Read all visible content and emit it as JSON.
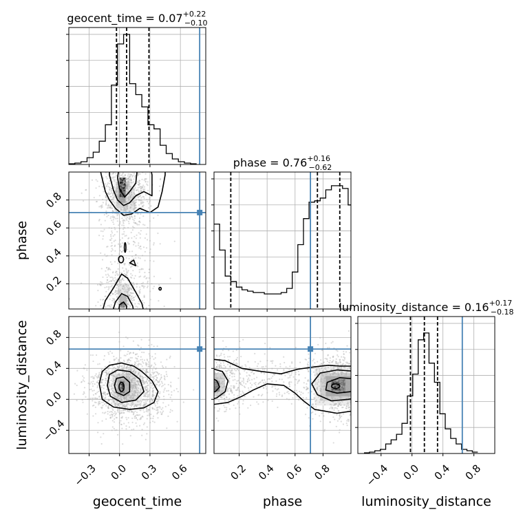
{
  "chart_data": {
    "type": "corner",
    "parameters": [
      "geocent_time",
      "phase",
      "luminosity_distance"
    ],
    "axis_labels": {
      "geocent_time": "geocent_time",
      "phase": "phase",
      "luminosity_distance": "luminosity_distance"
    },
    "titles": [
      {
        "param": "geocent_time",
        "name": "geocent_time",
        "median": "0.07",
        "plus": "+0.22",
        "minus": "−0.10"
      },
      {
        "param": "phase",
        "name": "phase",
        "median": "0.76",
        "plus": "+0.16",
        "minus": "−0.62"
      },
      {
        "param": "luminosity_distance",
        "name": "luminosity_distance",
        "median": "0.16",
        "plus": "+0.17",
        "minus": "−0.18"
      }
    ],
    "ranges": {
      "geocent_time": [
        -0.5,
        0.85
      ],
      "phase": [
        0.02,
        1.0
      ],
      "luminosity_distance": [
        -0.7,
        1.07
      ]
    },
    "ticks": {
      "geocent_time": {
        "values": [
          -0.3,
          0.0,
          0.3,
          0.6
        ],
        "labels": [
          "−0.3",
          "0.0",
          "0.3",
          "0.6"
        ]
      },
      "phase": {
        "values": [
          0.2,
          0.4,
          0.6,
          0.8
        ],
        "labels": [
          "0.2",
          "0.4",
          "0.6",
          "0.8"
        ]
      },
      "luminosity_distance": {
        "values": [
          -0.4,
          0.0,
          0.4,
          0.8
        ],
        "labels": [
          "−0.4",
          "0.0",
          "0.4",
          "0.8"
        ]
      }
    },
    "injection": {
      "geocent_time": 0.79,
      "phase": 0.71,
      "luminosity_distance": 0.65
    },
    "quantiles": {
      "geocent_time": [
        -0.03,
        0.07,
        0.29
      ],
      "phase": [
        0.14,
        0.76,
        0.92
      ],
      "luminosity_distance": [
        -0.02,
        0.16,
        0.33
      ]
    },
    "histograms": {
      "geocent_time": {
        "edges": [
          -0.5,
          -0.44,
          -0.38,
          -0.32,
          -0.26,
          -0.2,
          -0.14,
          -0.08,
          -0.02,
          0.04,
          0.1,
          0.16,
          0.22,
          0.28,
          0.34,
          0.4,
          0.46,
          0.52,
          0.58,
          0.64,
          0.7,
          0.76
        ],
        "counts": [
          0.005,
          0.01,
          0.02,
          0.05,
          0.09,
          0.17,
          0.29,
          0.58,
          0.88,
          0.95,
          0.59,
          0.51,
          0.42,
          0.29,
          0.26,
          0.14,
          0.08,
          0.04,
          0.02,
          0.01,
          0.005
        ]
      },
      "phase": {
        "edges": [
          0.02,
          0.06,
          0.1,
          0.14,
          0.18,
          0.22,
          0.26,
          0.3,
          0.34,
          0.38,
          0.42,
          0.46,
          0.5,
          0.54,
          0.58,
          0.62,
          0.66,
          0.7,
          0.74,
          0.78,
          0.82,
          0.86,
          0.9,
          0.94,
          0.98,
          1.0
        ],
        "counts": [
          0.62,
          0.43,
          0.24,
          0.2,
          0.16,
          0.14,
          0.13,
          0.12,
          0.12,
          0.11,
          0.11,
          0.11,
          0.12,
          0.15,
          0.27,
          0.47,
          0.66,
          0.78,
          0.79,
          0.81,
          0.87,
          0.9,
          0.9,
          0.88,
          0.76
        ]
      },
      "luminosity_distance": {
        "edges": [
          -0.62,
          -0.55,
          -0.48,
          -0.41,
          -0.34,
          -0.27,
          -0.2,
          -0.13,
          -0.06,
          0.01,
          0.08,
          0.15,
          0.22,
          0.29,
          0.36,
          0.43,
          0.5,
          0.57,
          0.64,
          0.71,
          0.78,
          0.85
        ],
        "counts": [
          0.005,
          0.01,
          0.02,
          0.03,
          0.07,
          0.1,
          0.14,
          0.22,
          0.42,
          0.58,
          0.83,
          0.88,
          0.66,
          0.52,
          0.29,
          0.18,
          0.11,
          0.07,
          0.03,
          0.02,
          0.01
        ]
      }
    },
    "grid": true,
    "colors": {
      "truth": "#4682b4",
      "lines": "#000000",
      "points": "#b0b0b0",
      "grid": "#b0b0b0"
    }
  }
}
